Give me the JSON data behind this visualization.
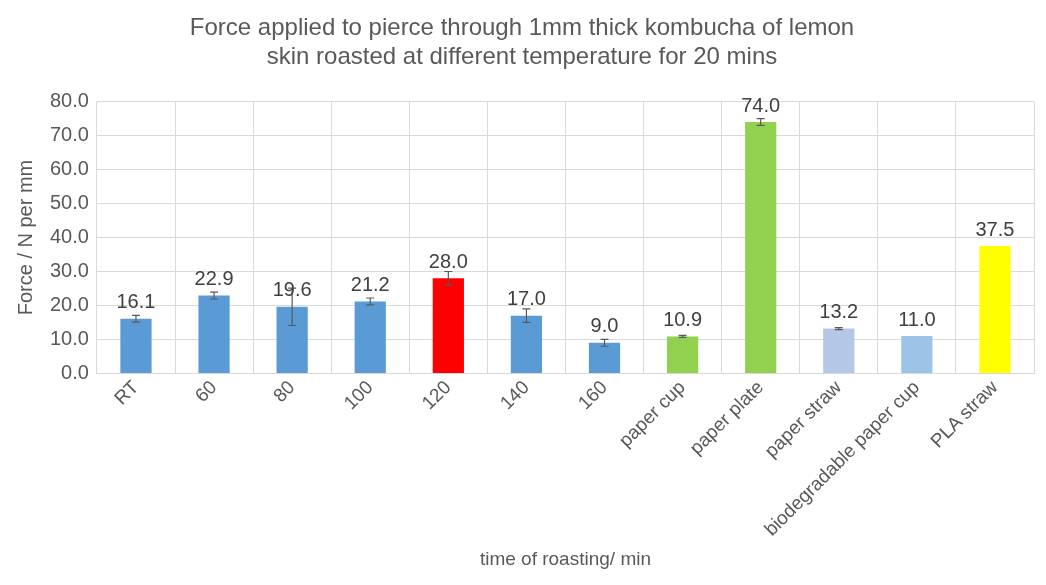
{
  "chart_data": {
    "type": "bar",
    "title": "Force applied to pierce through 1mm thick kombucha of lemon skin roasted at different temperature for 20 mins",
    "xlabel": "time of roasting/ min",
    "ylabel": "Force / N per mm",
    "categories": [
      "RT",
      "60",
      "80",
      "100",
      "120",
      "140",
      "160",
      "paper cup",
      "paper plate",
      "paper straw",
      "biodegradable paper cup",
      "PLA straw"
    ],
    "values": [
      16.1,
      22.9,
      19.6,
      21.2,
      28.0,
      17.0,
      9.0,
      10.9,
      74.0,
      13.2,
      11.0,
      37.5
    ],
    "colors": [
      "#5b9bd5",
      "#5b9bd5",
      "#5b9bd5",
      "#5b9bd5",
      "#ff0000",
      "#5b9bd5",
      "#5b9bd5",
      "#92d050",
      "#92d050",
      "#b4c7e7",
      "#9dc3e6",
      "#ffff00"
    ],
    "errors": [
      1.0,
      1.0,
      5.5,
      1.0,
      2.0,
      2.0,
      1.0,
      0.3,
      1.0,
      0.3,
      null,
      null
    ],
    "value_labels": [
      "16.1",
      "22.9",
      "19.6",
      "21.2",
      "28.0",
      "17.0",
      "9.0",
      "10.9",
      "74.0",
      "13.2",
      "11.0",
      "37.5"
    ],
    "ylim": [
      0,
      80
    ],
    "yticks": [
      {
        "value": 0,
        "label": "0.0"
      },
      {
        "value": 10,
        "label": "10.0"
      },
      {
        "value": 20,
        "label": "20.0"
      },
      {
        "value": 30,
        "label": "30.0"
      },
      {
        "value": 40,
        "label": "40.0"
      },
      {
        "value": 50,
        "label": "50.0"
      },
      {
        "value": 60,
        "label": "60.0"
      },
      {
        "value": 70,
        "label": "70.0"
      },
      {
        "value": 80,
        "label": "80.0"
      }
    ],
    "grid": true,
    "legend": false
  }
}
